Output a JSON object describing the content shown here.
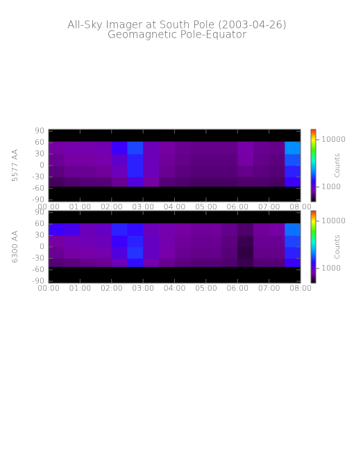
{
  "title": "All-Sky Imager at South Pole (2003-04-26)",
  "subtitle": "Geomagnetic Pole-Equator",
  "chart_data": [
    {
      "type": "heatmap",
      "ylabel": "5577 AA",
      "colorbar_label": "Counts",
      "log_colorbar": true,
      "colormap": [
        "#000000",
        "#7a00a8",
        "#3800ff",
        "#0090ff",
        "#00ffd0",
        "#30ff00",
        "#ffff00",
        "#ff3000"
      ],
      "xlim": [
        0,
        8
      ],
      "ylim": [
        -95,
        95
      ],
      "clim": [
        490,
        16600
      ],
      "xticks": [
        {
          "value": 0,
          "label": "00:00"
        },
        {
          "value": 1,
          "label": "01:00"
        },
        {
          "value": 2,
          "label": "02:00"
        },
        {
          "value": 3,
          "label": "03:00"
        },
        {
          "value": 4,
          "label": "04:00"
        },
        {
          "value": 5,
          "label": "05:00"
        },
        {
          "value": 6,
          "label": "06:00"
        },
        {
          "value": 7,
          "label": "07:00"
        },
        {
          "value": 8,
          "label": "08:00"
        }
      ],
      "yticks": [
        -90,
        -60,
        -30,
        0,
        30,
        60,
        90
      ],
      "cticks": [
        1000,
        10000
      ],
      "x_edges": [
        0,
        0.5,
        1,
        1.5,
        2,
        2.5,
        3,
        3.5,
        4,
        4.5,
        5,
        5.5,
        6,
        6.5,
        7,
        7.5,
        8
      ],
      "y_edges": [
        -55,
        -30,
        0,
        30,
        63
      ],
      "values": [
        [
          650,
          680,
          700,
          700,
          760,
          1100,
          800,
          700,
          680,
          660,
          660,
          660,
          680,
          680,
          660,
          1300
        ],
        [
          720,
          760,
          760,
          780,
          900,
          1500,
          900,
          760,
          720,
          700,
          700,
          700,
          740,
          720,
          700,
          1500
        ],
        [
          760,
          800,
          800,
          820,
          1000,
          1500,
          900,
          780,
          740,
          720,
          720,
          720,
          800,
          740,
          720,
          1800
        ],
        [
          800,
          840,
          840,
          860,
          1300,
          1700,
          900,
          800,
          760,
          740,
          740,
          740,
          820,
          760,
          740,
          2200
        ]
      ]
    },
    {
      "type": "heatmap",
      "ylabel": "6300 AA",
      "colorbar_label": "Counts",
      "log_colorbar": true,
      "colormap": [
        "#000000",
        "#7a00a8",
        "#3800ff",
        "#0090ff",
        "#00ffd0",
        "#30ff00",
        "#ffff00",
        "#ff3000"
      ],
      "xlim": [
        0,
        8
      ],
      "ylim": [
        -95,
        95
      ],
      "clim": [
        490,
        16600
      ],
      "xticks": [
        {
          "value": 0,
          "label": "00:00"
        },
        {
          "value": 1,
          "label": "01:00"
        },
        {
          "value": 2,
          "label": "02:00"
        },
        {
          "value": 3,
          "label": "03:00"
        },
        {
          "value": 4,
          "label": "04:00"
        },
        {
          "value": 5,
          "label": "05:00"
        },
        {
          "value": 6,
          "label": "06:00"
        },
        {
          "value": 7,
          "label": "07:00"
        },
        {
          "value": 8,
          "label": "08:00"
        }
      ],
      "yticks": [
        -90,
        -60,
        -30,
        0,
        30,
        60,
        90
      ],
      "cticks": [
        1000,
        10000
      ],
      "x_edges": [
        0,
        0.5,
        1,
        1.5,
        2,
        2.5,
        3,
        3.5,
        4,
        4.5,
        5,
        5.5,
        6,
        6.5,
        7,
        7.5,
        8
      ],
      "y_edges": [
        -52,
        -30,
        0,
        30,
        62
      ],
      "values": [
        [
          700,
          720,
          740,
          760,
          900,
          1400,
          850,
          760,
          720,
          700,
          700,
          680,
          620,
          700,
          700,
          1300
        ],
        [
          760,
          800,
          820,
          850,
          1100,
          1600,
          950,
          820,
          760,
          740,
          740,
          700,
          600,
          740,
          740,
          1500
        ],
        [
          800,
          860,
          880,
          900,
          1300,
          1500,
          950,
          840,
          780,
          760,
          760,
          720,
          620,
          760,
          760,
          1700
        ],
        [
          1300,
          1200,
          900,
          950,
          1500,
          1400,
          900,
          840,
          800,
          780,
          780,
          740,
          680,
          780,
          800,
          2000
        ]
      ]
    }
  ]
}
